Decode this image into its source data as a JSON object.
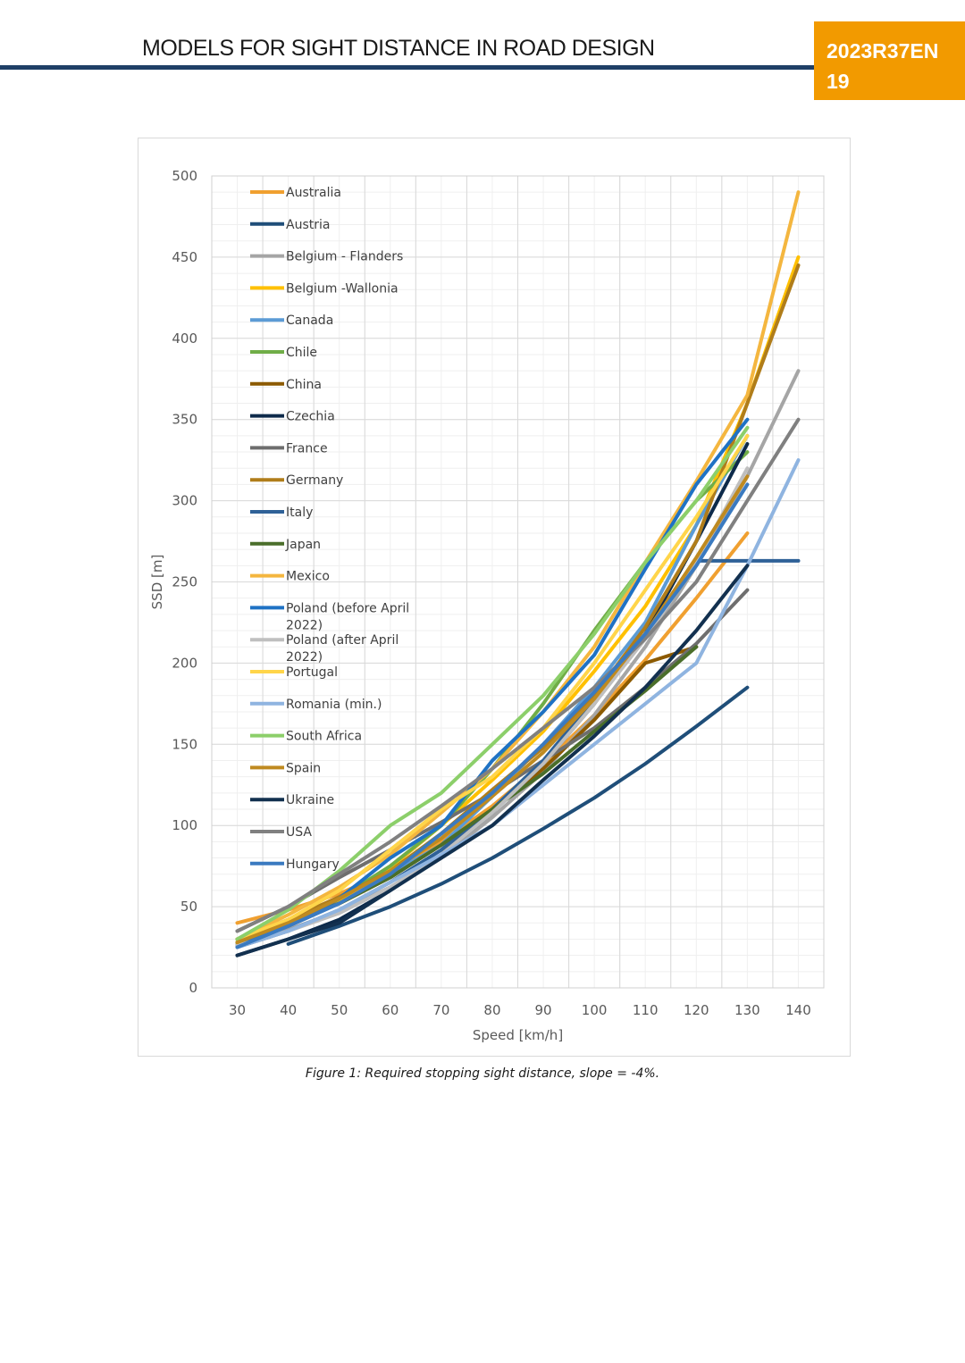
{
  "header": {
    "title": "MODELS FOR SIGHT DISTANCE IN ROAD DESIGN",
    "report_code": "2023R37EN",
    "page_number": "19"
  },
  "caption": "Figure 1: Required stopping sight distance, slope = -4%.",
  "chart_data": {
    "type": "line",
    "title": "",
    "xlabel": "Speed [km/h]",
    "ylabel": "SSD [m]",
    "xlim": [
      25,
      145
    ],
    "ylim": [
      0,
      500
    ],
    "x_ticks": [
      30,
      40,
      50,
      60,
      70,
      80,
      90,
      100,
      110,
      120,
      130,
      140
    ],
    "y_ticks": [
      0,
      50,
      100,
      150,
      200,
      250,
      300,
      350,
      400,
      450,
      500
    ],
    "legend_position": "top-left",
    "series": [
      {
        "name": "Australia",
        "color": "#f0a030",
        "x": [
          30,
          40,
          50,
          60,
          70,
          80,
          90,
          100,
          110,
          120,
          130
        ],
        "y": [
          40,
          48,
          58,
          72,
          90,
          112,
          138,
          168,
          202,
          240,
          280
        ]
      },
      {
        "name": "Austria",
        "color": "#1f4e79",
        "x": [
          40,
          50,
          60,
          70,
          80,
          90,
          100,
          110,
          120,
          130
        ],
        "y": [
          27,
          38,
          50,
          64,
          80,
          98,
          117,
          138,
          161,
          185
        ]
      },
      {
        "name": "Belgium - Flanders",
        "color": "#a5a5a5",
        "x": [
          30,
          40,
          50,
          60,
          70,
          80,
          90,
          100,
          110,
          120,
          130,
          140
        ],
        "y": [
          27,
          36,
          47,
          62,
          80,
          105,
          133,
          168,
          210,
          260,
          315,
          380
        ]
      },
      {
        "name": "Belgium -Wallonia",
        "color": "#ffc000",
        "x": [
          30,
          40,
          50,
          60,
          70,
          80,
          90,
          100,
          110,
          120,
          130,
          140
        ],
        "y": [
          28,
          40,
          54,
          74,
          100,
          128,
          158,
          195,
          235,
          285,
          360,
          450
        ]
      },
      {
        "name": "Canada",
        "color": "#5b9bd5",
        "x": [
          30,
          40,
          50,
          60,
          70,
          80,
          90,
          100,
          110,
          120,
          130
        ],
        "y": [
          26,
          38,
          52,
          70,
          88,
          118,
          150,
          185,
          225,
          285,
          340
        ]
      },
      {
        "name": "Chile",
        "color": "#70ad47",
        "x": [
          30,
          40,
          50,
          60,
          70,
          80,
          90,
          100,
          110,
          120,
          130
        ],
        "y": [
          28,
          40,
          55,
          75,
          100,
          135,
          175,
          220,
          262,
          300,
          330
        ]
      },
      {
        "name": "China",
        "color": "#8c5a00",
        "x": [
          30,
          40,
          50,
          60,
          70,
          80,
          90,
          100,
          110,
          120
        ],
        "y": [
          30,
          40,
          52,
          68,
          88,
          110,
          135,
          165,
          200,
          210
        ]
      },
      {
        "name": "Czechia",
        "color": "#0d2a4a",
        "x": [
          30,
          40,
          50,
          60,
          70,
          80,
          90,
          100,
          110,
          120,
          130
        ],
        "y": [
          20,
          30,
          42,
          60,
          82,
          108,
          138,
          175,
          218,
          275,
          335
        ]
      },
      {
        "name": "France",
        "color": "#6e6e6e",
        "x": [
          30,
          40,
          50,
          60,
          70,
          80,
          90,
          100,
          110,
          120,
          130
        ],
        "y": [
          35,
          50,
          68,
          85,
          102,
          120,
          140,
          160,
          185,
          212,
          245
        ]
      },
      {
        "name": "Germany",
        "color": "#b07d1a",
        "x": [
          30,
          40,
          50,
          60,
          70,
          80,
          90,
          100,
          110,
          120,
          130,
          140
        ],
        "y": [
          30,
          42,
          56,
          72,
          95,
          122,
          148,
          180,
          222,
          275,
          360,
          445
        ]
      },
      {
        "name": "Italy",
        "color": "#2f6197",
        "x": [
          30,
          40,
          50,
          60,
          70,
          80,
          90,
          100,
          110,
          120,
          130,
          140
        ],
        "y": [
          25,
          35,
          48,
          65,
          85,
          110,
          140,
          178,
          218,
          263,
          263,
          263
        ]
      },
      {
        "name": "Japan",
        "color": "#4a6e2a",
        "x": [
          30,
          40,
          50,
          60,
          70,
          80,
          90,
          100,
          110,
          120
        ],
        "y": [
          30,
          40,
          52,
          68,
          88,
          110,
          132,
          158,
          183,
          210
        ]
      },
      {
        "name": "Mexico",
        "color": "#f4b63f",
        "x": [
          30,
          40,
          50,
          60,
          70,
          80,
          90,
          100,
          110,
          120,
          130,
          140
        ],
        "y": [
          30,
          45,
          62,
          82,
          108,
          135,
          170,
          210,
          262,
          312,
          365,
          490
        ]
      },
      {
        "name": "Poland (before April 2022)",
        "color": "#1f72c4",
        "x": [
          30,
          40,
          50,
          60,
          70,
          80,
          90,
          100,
          110,
          120,
          130
        ],
        "y": [
          26,
          38,
          55,
          80,
          100,
          140,
          170,
          205,
          258,
          310,
          350
        ]
      },
      {
        "name": "Poland (after April 2022)",
        "color": "#bfbfbf",
        "x": [
          30,
          40,
          50,
          60,
          70,
          80,
          90,
          100,
          110,
          120,
          130
        ],
        "y": [
          26,
          35,
          46,
          62,
          82,
          108,
          138,
          175,
          215,
          262,
          320
        ]
      },
      {
        "name": "Portugal",
        "color": "#ffd54a",
        "x": [
          30,
          40,
          50,
          60,
          70,
          80,
          90,
          100,
          110,
          120,
          130
        ],
        "y": [
          30,
          42,
          60,
          85,
          110,
          130,
          160,
          200,
          245,
          290,
          340
        ]
      },
      {
        "name": "Romania (min.)",
        "color": "#8fb4e0",
        "x": [
          30,
          40,
          50,
          60,
          70,
          80,
          90,
          100,
          110,
          120,
          130,
          140
        ],
        "y": [
          25,
          35,
          48,
          65,
          82,
          100,
          125,
          150,
          175,
          200,
          260,
          325
        ]
      },
      {
        "name": "South Africa",
        "color": "#8ccf6a",
        "x": [
          30,
          40,
          50,
          60,
          70,
          80,
          90,
          100,
          110,
          120,
          130
        ],
        "y": [
          30,
          48,
          72,
          100,
          120,
          150,
          180,
          218,
          262,
          300,
          345
        ]
      },
      {
        "name": "Spain",
        "color": "#bf8a20",
        "x": [
          30,
          40,
          50,
          60,
          70,
          80,
          90,
          100,
          110,
          120,
          130
        ],
        "y": [
          28,
          40,
          55,
          72,
          92,
          118,
          145,
          178,
          218,
          265,
          315
        ]
      },
      {
        "name": "Ukraine",
        "color": "#12304f",
        "x": [
          30,
          40,
          50,
          60,
          70,
          80,
          90,
          100,
          110,
          120,
          130
        ],
        "y": [
          20,
          30,
          40,
          60,
          80,
          100,
          128,
          155,
          185,
          220,
          260
        ]
      },
      {
        "name": "USA",
        "color": "#808080",
        "x": [
          30,
          40,
          50,
          60,
          70,
          80,
          90,
          100,
          110,
          120,
          130,
          140
        ],
        "y": [
          35,
          50,
          70,
          90,
          112,
          135,
          160,
          185,
          215,
          250,
          300,
          350
        ]
      },
      {
        "name": "Hungary",
        "color": "#3a7ac0",
        "x": [
          30,
          40,
          50,
          60,
          70,
          80,
          90,
          100,
          110,
          120,
          130
        ],
        "y": [
          25,
          38,
          52,
          70,
          95,
          120,
          150,
          182,
          218,
          260,
          310
        ]
      }
    ]
  }
}
